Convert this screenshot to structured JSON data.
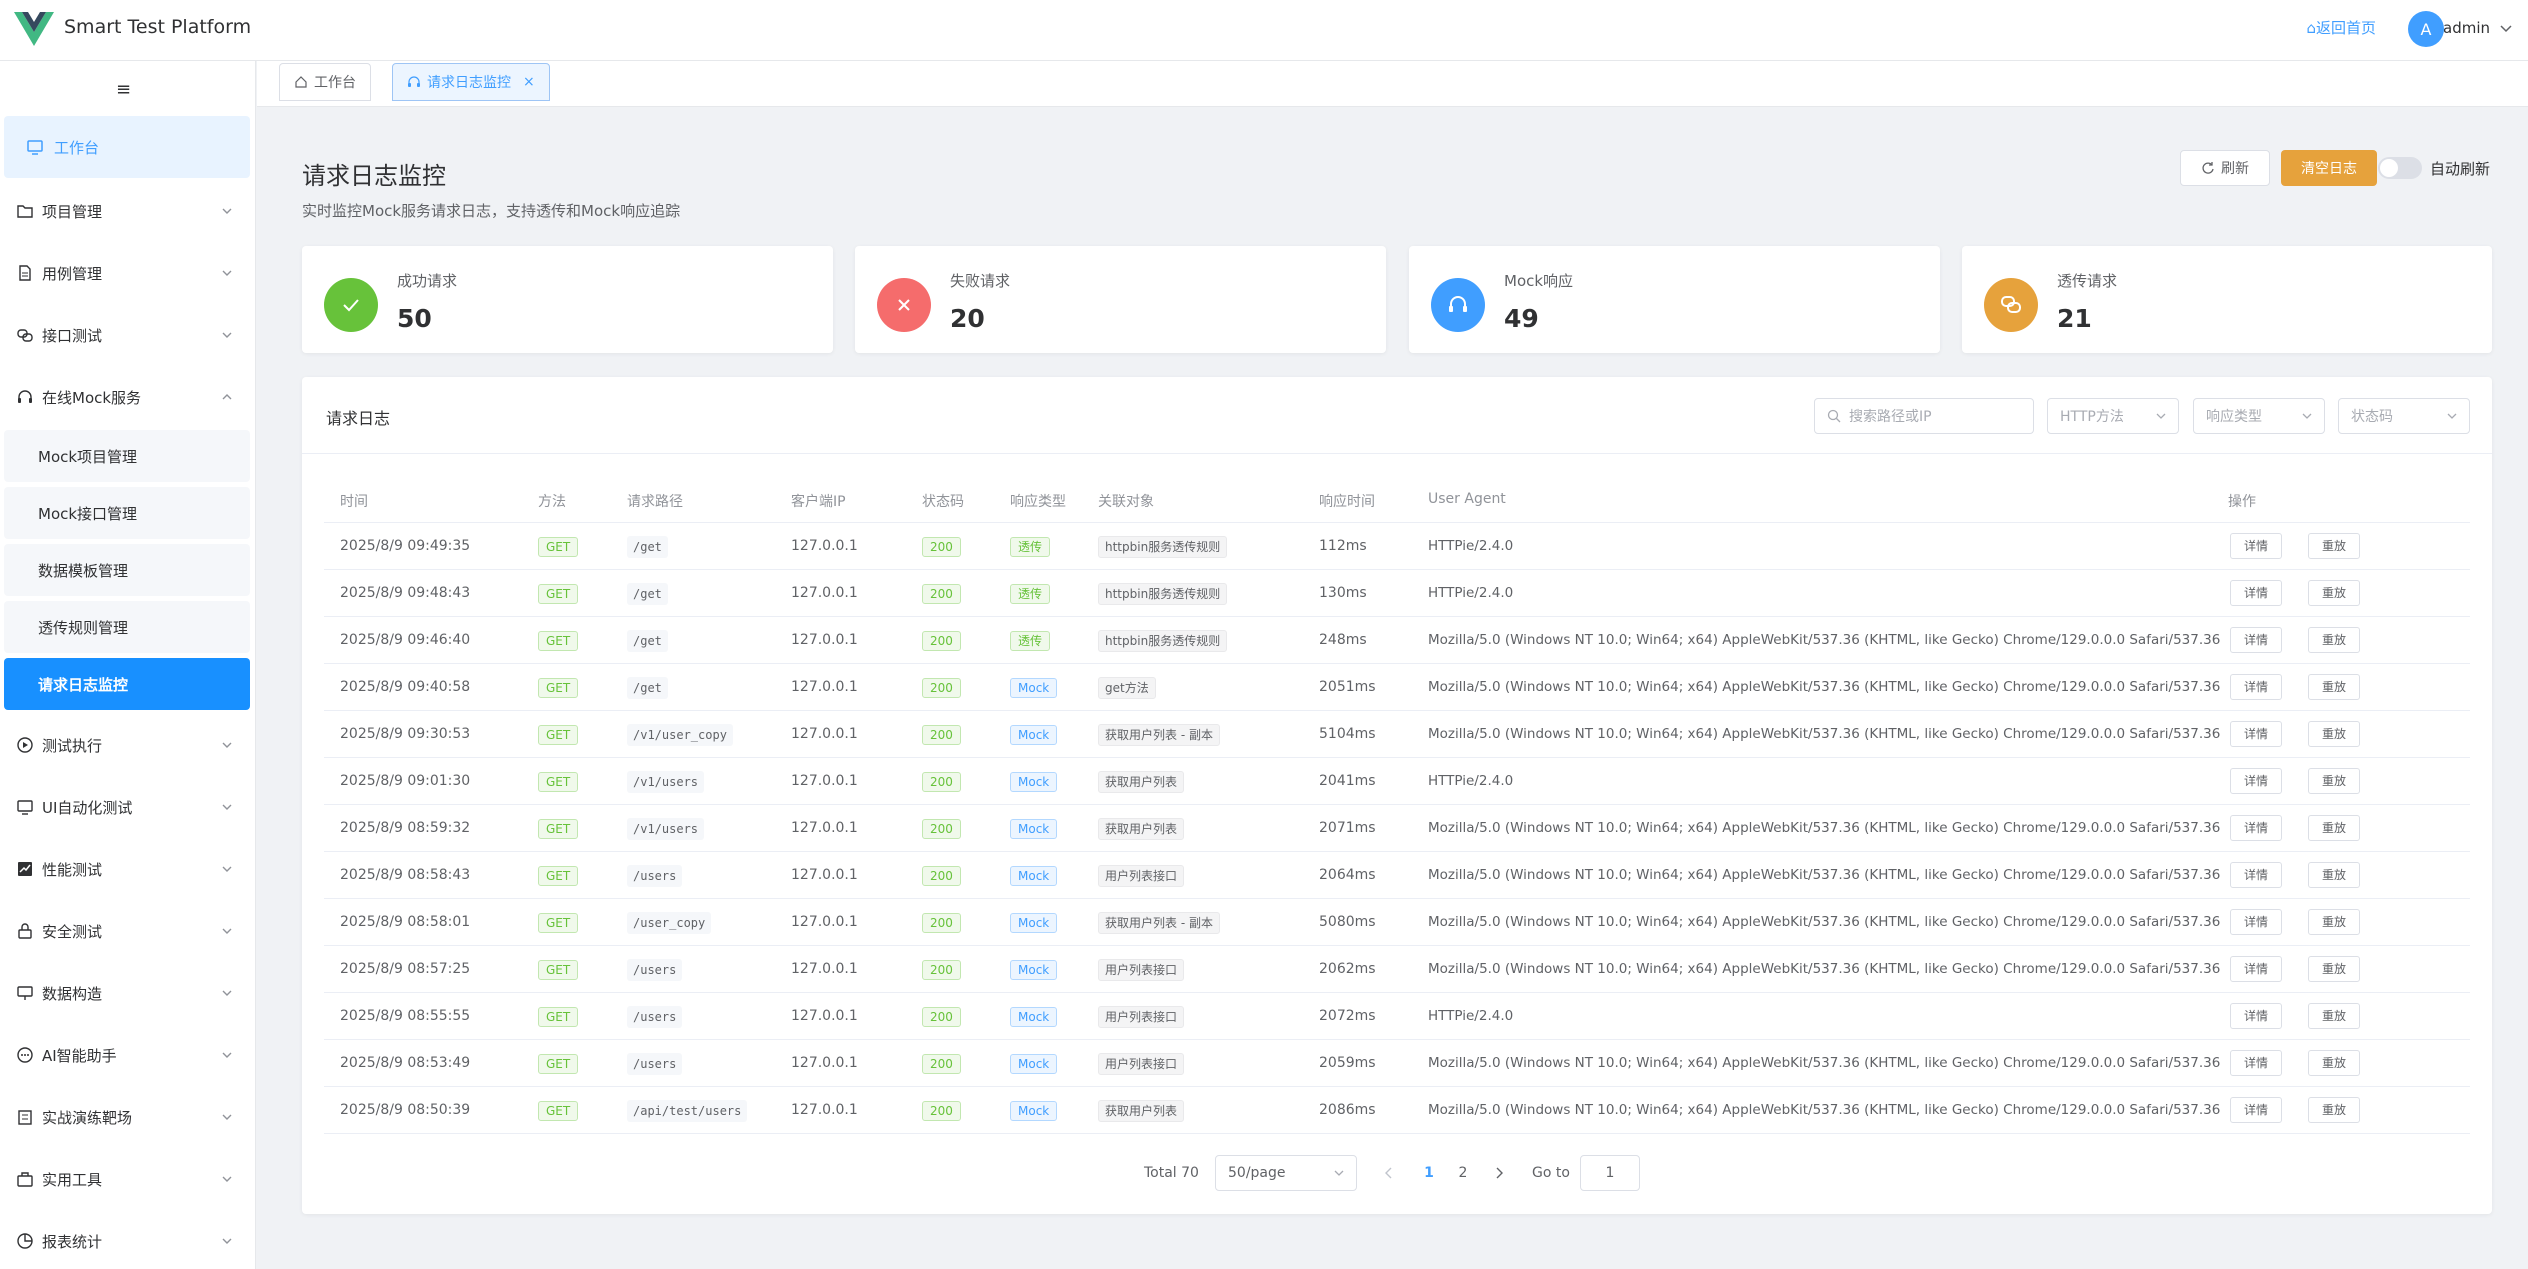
{
  "app": {
    "title": "Smart Test Platform",
    "home_link": "⌂返回首页",
    "user_initial": "A",
    "user_name": "admin"
  },
  "sidebar": {
    "collapse_label": "≡",
    "items": [
      {
        "label": "工作台"
      },
      {
        "label": "项目管理"
      },
      {
        "label": "用例管理"
      },
      {
        "label": "接口测试"
      },
      {
        "label": "在线Mock服务"
      },
      {
        "label": "测试执行"
      },
      {
        "label": "UI自动化测试"
      },
      {
        "label": "性能测试"
      },
      {
        "label": "安全测试"
      },
      {
        "label": "数据构造"
      },
      {
        "label": "AI智能助手"
      },
      {
        "label": "实战演练靶场"
      },
      {
        "label": "实用工具"
      },
      {
        "label": "报表统计"
      }
    ],
    "mock_children": [
      {
        "label": "Mock项目管理"
      },
      {
        "label": "Mock接口管理"
      },
      {
        "label": "数据模板管理"
      },
      {
        "label": "透传规则管理"
      },
      {
        "label": "请求日志监控"
      }
    ]
  },
  "tabs": [
    {
      "label": "工作台"
    },
    {
      "label": "请求日志监控",
      "close": "×"
    }
  ],
  "page": {
    "title": "请求日志监控",
    "subtitle": "实时监控Mock服务请求日志，支持透传和Mock响应追踪",
    "refresh": "刷新",
    "clear": "清空日志",
    "auto_refresh": "自动刷新"
  },
  "stats": [
    {
      "label": "成功请求",
      "value": "50",
      "color": "#67c23a"
    },
    {
      "label": "失败请求",
      "value": "20",
      "color": "#f56c6c"
    },
    {
      "label": "Mock响应",
      "value": "49",
      "color": "#409eff"
    },
    {
      "label": "透传请求",
      "value": "21",
      "color": "#e6a23c"
    }
  ],
  "logs": {
    "title": "请求日志",
    "search_placeholder": "搜索路径或IP",
    "filter_method": "HTTP方法",
    "filter_type": "响应类型",
    "filter_status": "状态码",
    "columns": [
      "时间",
      "方法",
      "请求路径",
      "客户端IP",
      "状态码",
      "响应类型",
      "关联对象",
      "响应时间",
      "User Agent",
      "操作"
    ],
    "detail_label": "详情",
    "replay_label": "重放",
    "rows": [
      {
        "time": "2025/8/9 09:49:35",
        "method": "GET",
        "path": "/get",
        "ip": "127.0.0.1",
        "status": "200",
        "type": "透传",
        "target": "httpbin服务透传规则",
        "duration": "112ms",
        "ua": "HTTPie/2.4.0"
      },
      {
        "time": "2025/8/9 09:48:43",
        "method": "GET",
        "path": "/get",
        "ip": "127.0.0.1",
        "status": "200",
        "type": "透传",
        "target": "httpbin服务透传规则",
        "duration": "130ms",
        "ua": "HTTPie/2.4.0"
      },
      {
        "time": "2025/8/9 09:46:40",
        "method": "GET",
        "path": "/get",
        "ip": "127.0.0.1",
        "status": "200",
        "type": "透传",
        "target": "httpbin服务透传规则",
        "duration": "248ms",
        "ua": "Mozilla/5.0 (Windows NT 10.0; Win64; x64) AppleWebKit/537.36 (KHTML, like Gecko) Chrome/129.0.0.0 Safari/537.36"
      },
      {
        "time": "2025/8/9 09:40:58",
        "method": "GET",
        "path": "/get",
        "ip": "127.0.0.1",
        "status": "200",
        "type": "Mock",
        "target": "get方法",
        "duration": "2051ms",
        "ua": "Mozilla/5.0 (Windows NT 10.0; Win64; x64) AppleWebKit/537.36 (KHTML, like Gecko) Chrome/129.0.0.0 Safari/537.36"
      },
      {
        "time": "2025/8/9 09:30:53",
        "method": "GET",
        "path": "/v1/user_copy",
        "ip": "127.0.0.1",
        "status": "200",
        "type": "Mock",
        "target": "获取用户列表 - 副本",
        "duration": "5104ms",
        "ua": "Mozilla/5.0 (Windows NT 10.0; Win64; x64) AppleWebKit/537.36 (KHTML, like Gecko) Chrome/129.0.0.0 Safari/537.36"
      },
      {
        "time": "2025/8/9 09:01:30",
        "method": "GET",
        "path": "/v1/users",
        "ip": "127.0.0.1",
        "status": "200",
        "type": "Mock",
        "target": "获取用户列表",
        "duration": "2041ms",
        "ua": "HTTPie/2.4.0"
      },
      {
        "time": "2025/8/9 08:59:32",
        "method": "GET",
        "path": "/v1/users",
        "ip": "127.0.0.1",
        "status": "200",
        "type": "Mock",
        "target": "获取用户列表",
        "duration": "2071ms",
        "ua": "Mozilla/5.0 (Windows NT 10.0; Win64; x64) AppleWebKit/537.36 (KHTML, like Gecko) Chrome/129.0.0.0 Safari/537.36"
      },
      {
        "time": "2025/8/9 08:58:43",
        "method": "GET",
        "path": "/users",
        "ip": "127.0.0.1",
        "status": "200",
        "type": "Mock",
        "target": "用户列表接口",
        "duration": "2064ms",
        "ua": "Mozilla/5.0 (Windows NT 10.0; Win64; x64) AppleWebKit/537.36 (KHTML, like Gecko) Chrome/129.0.0.0 Safari/537.36"
      },
      {
        "time": "2025/8/9 08:58:01",
        "method": "GET",
        "path": "/user_copy",
        "ip": "127.0.0.1",
        "status": "200",
        "type": "Mock",
        "target": "获取用户列表 - 副本",
        "duration": "5080ms",
        "ua": "Mozilla/5.0 (Windows NT 10.0; Win64; x64) AppleWebKit/537.36 (KHTML, like Gecko) Chrome/129.0.0.0 Safari/537.36"
      },
      {
        "time": "2025/8/9 08:57:25",
        "method": "GET",
        "path": "/users",
        "ip": "127.0.0.1",
        "status": "200",
        "type": "Mock",
        "target": "用户列表接口",
        "duration": "2062ms",
        "ua": "Mozilla/5.0 (Windows NT 10.0; Win64; x64) AppleWebKit/537.36 (KHTML, like Gecko) Chrome/129.0.0.0 Safari/537.36"
      },
      {
        "time": "2025/8/9 08:55:55",
        "method": "GET",
        "path": "/users",
        "ip": "127.0.0.1",
        "status": "200",
        "type": "Mock",
        "target": "用户列表接口",
        "duration": "2072ms",
        "ua": "HTTPie/2.4.0"
      },
      {
        "time": "2025/8/9 08:53:49",
        "method": "GET",
        "path": "/users",
        "ip": "127.0.0.1",
        "status": "200",
        "type": "Mock",
        "target": "用户列表接口",
        "duration": "2059ms",
        "ua": "Mozilla/5.0 (Windows NT 10.0; Win64; x64) AppleWebKit/537.36 (KHTML, like Gecko) Chrome/129.0.0.0 Safari/537.36"
      },
      {
        "time": "2025/8/9 08:50:39",
        "method": "GET",
        "path": "/api/test/users",
        "ip": "127.0.0.1",
        "status": "200",
        "type": "Mock",
        "target": "获取用户列表",
        "duration": "2086ms",
        "ua": "Mozilla/5.0 (Windows NT 10.0; Win64; x64) AppleWebKit/537.36 (KHTML, like Gecko) Chrome/129.0.0.0 Safari/537.36"
      }
    ]
  },
  "pagination": {
    "total": "Total 70",
    "page_size": "50/page",
    "pages": [
      "1",
      "2"
    ],
    "current": "1",
    "goto_label": "Go to",
    "goto_value": "1"
  }
}
